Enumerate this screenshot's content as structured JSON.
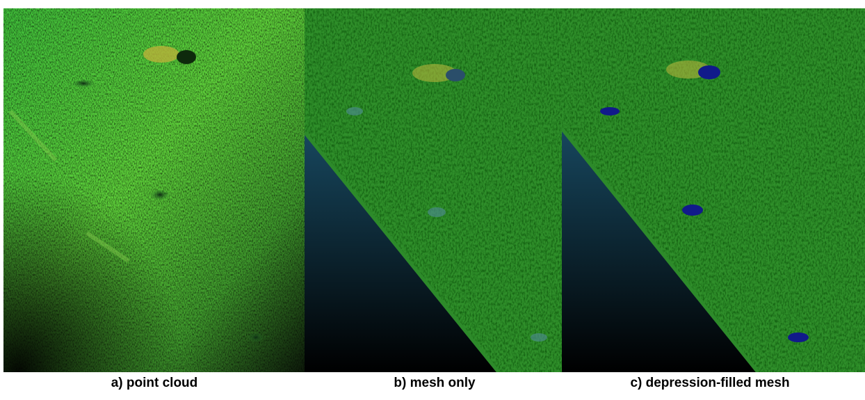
{
  "panels": [
    {
      "caption": "a) point cloud"
    },
    {
      "caption": "b) mesh only"
    },
    {
      "caption": "c) depression-filled mesh"
    }
  ]
}
